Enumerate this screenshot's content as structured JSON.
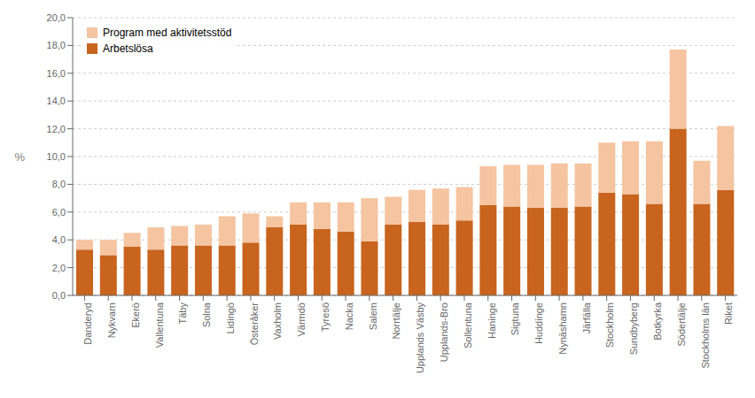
{
  "chart_data": {
    "type": "bar",
    "stacked": true,
    "categories": [
      "Danderyd",
      "Nykvarn",
      "Ekerö",
      "Vallentuna",
      "Täby",
      "Solna",
      "Lidingö",
      "Österåker",
      "Vaxholm",
      "Värmdö",
      "Tyresö",
      "Nacka",
      "Salem",
      "Norrtälje",
      "Upplands Väsby",
      "Upplands-Bro",
      "Sollentuna",
      "Haninge",
      "Sigtuna",
      "Huddinge",
      "Nynäshamn",
      "Järfälla",
      "Stockholm",
      "Sundbyberg",
      "Botkyrka",
      "Södertälje",
      "Stockholms län",
      "Riket"
    ],
    "series": [
      {
        "name": "Arbetslösa",
        "color": "#C8641E",
        "values": [
          3.3,
          2.9,
          3.5,
          3.3,
          3.6,
          3.6,
          3.6,
          3.8,
          4.9,
          5.1,
          4.8,
          4.6,
          3.9,
          5.1,
          5.3,
          5.1,
          5.4,
          6.5,
          6.4,
          6.3,
          6.3,
          6.4,
          7.4,
          7.3,
          6.6,
          12.0,
          6.6,
          7.6
        ]
      },
      {
        "name": "Program med aktivitetsstöd",
        "color": "#F5C4A0",
        "values": [
          0.7,
          1.1,
          1.0,
          1.6,
          1.4,
          1.5,
          2.1,
          2.1,
          0.8,
          1.6,
          1.9,
          2.1,
          3.1,
          2.0,
          2.3,
          2.6,
          2.4,
          2.8,
          3.0,
          3.1,
          3.2,
          3.1,
          3.6,
          3.8,
          4.5,
          5.7,
          3.1,
          4.6
        ]
      }
    ],
    "ylabel": "%",
    "ylim": [
      0,
      20
    ],
    "yticks": [
      {
        "value": 0,
        "label": "0,0"
      },
      {
        "value": 2,
        "label": "2,0"
      },
      {
        "value": 4,
        "label": "4,0"
      },
      {
        "value": 6,
        "label": "6,0"
      },
      {
        "value": 8,
        "label": "8,0"
      },
      {
        "value": 10,
        "label": "10,0"
      },
      {
        "value": 12,
        "label": "12,0"
      },
      {
        "value": 14,
        "label": "14,0"
      },
      {
        "value": 16,
        "label": "16,0"
      },
      {
        "value": 18,
        "label": "18,0"
      },
      {
        "value": 20,
        "label": "20,0"
      }
    ],
    "grid": true,
    "legend": "upper left"
  }
}
